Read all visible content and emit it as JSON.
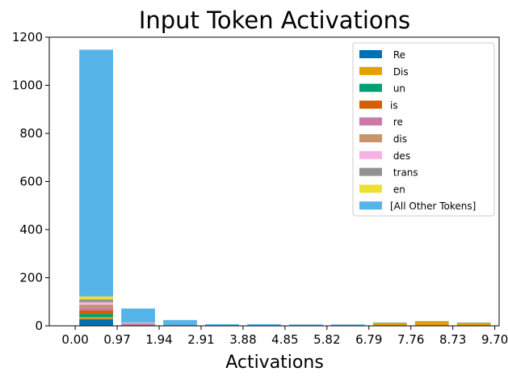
{
  "chart_data": {
    "type": "bar",
    "stacked": true,
    "title": "Input Token Activations",
    "xlabel": "Activations",
    "ylabel": "",
    "ylim": [
      0,
      1200
    ],
    "xlim": [
      -0.6,
      9.8
    ],
    "yticks": [
      0,
      200,
      400,
      600,
      800,
      1000,
      1200
    ],
    "xticks": [
      0.0,
      0.97,
      1.94,
      2.91,
      3.88,
      4.85,
      5.82,
      6.79,
      7.76,
      8.73,
      9.7
    ],
    "xtick_labels": [
      "0.00",
      "0.97",
      "1.94",
      "2.91",
      "3.88",
      "4.85",
      "5.82",
      "6.79",
      "7.76",
      "8.73",
      "9.70"
    ],
    "bin_centers": [
      0.485,
      1.455,
      2.425,
      3.395,
      4.365,
      5.335,
      6.305,
      7.275,
      8.245,
      9.215
    ],
    "bar_width": 0.78,
    "legend_position": "top-right",
    "grid": false,
    "series": [
      {
        "name": " Re",
        "color": "#0072b2",
        "values": [
          28,
          0,
          0,
          0,
          0,
          0,
          0,
          0,
          0,
          0
        ]
      },
      {
        "name": " Dis",
        "color": "#e69f00",
        "values": [
          8,
          0,
          0,
          0,
          0,
          3,
          3,
          12,
          18,
          12
        ]
      },
      {
        "name": " un",
        "color": "#009e73",
        "values": [
          14,
          1,
          0,
          0,
          0,
          0,
          0,
          0,
          0,
          0
        ]
      },
      {
        "name": "is",
        "color": "#d55e00",
        "values": [
          14,
          2,
          0,
          0,
          0,
          0,
          0,
          0,
          0,
          0
        ]
      },
      {
        "name": " re",
        "color": "#cc79a7",
        "values": [
          12,
          4,
          0,
          0,
          0,
          0,
          0,
          0,
          0,
          0
        ]
      },
      {
        "name": " dis",
        "color": "#c8956a",
        "values": [
          12,
          3,
          0,
          0,
          0,
          0,
          0,
          0,
          0,
          0
        ]
      },
      {
        "name": " des",
        "color": "#f5b3e3",
        "values": [
          10,
          3,
          0,
          0,
          0,
          0,
          0,
          0,
          0,
          0
        ]
      },
      {
        "name": " trans",
        "color": "#929292",
        "values": [
          12,
          1,
          0,
          0,
          0,
          0,
          0,
          0,
          0,
          0
        ]
      },
      {
        "name": " en",
        "color": "#ece133",
        "values": [
          12,
          0,
          0,
          0,
          0,
          0,
          0,
          0,
          0,
          0
        ]
      },
      {
        "name": "[All Other Tokens]",
        "color": "#56b4e9",
        "values": [
          1026,
          58,
          24,
          7,
          7,
          3,
          3,
          2,
          2,
          2
        ]
      }
    ]
  }
}
